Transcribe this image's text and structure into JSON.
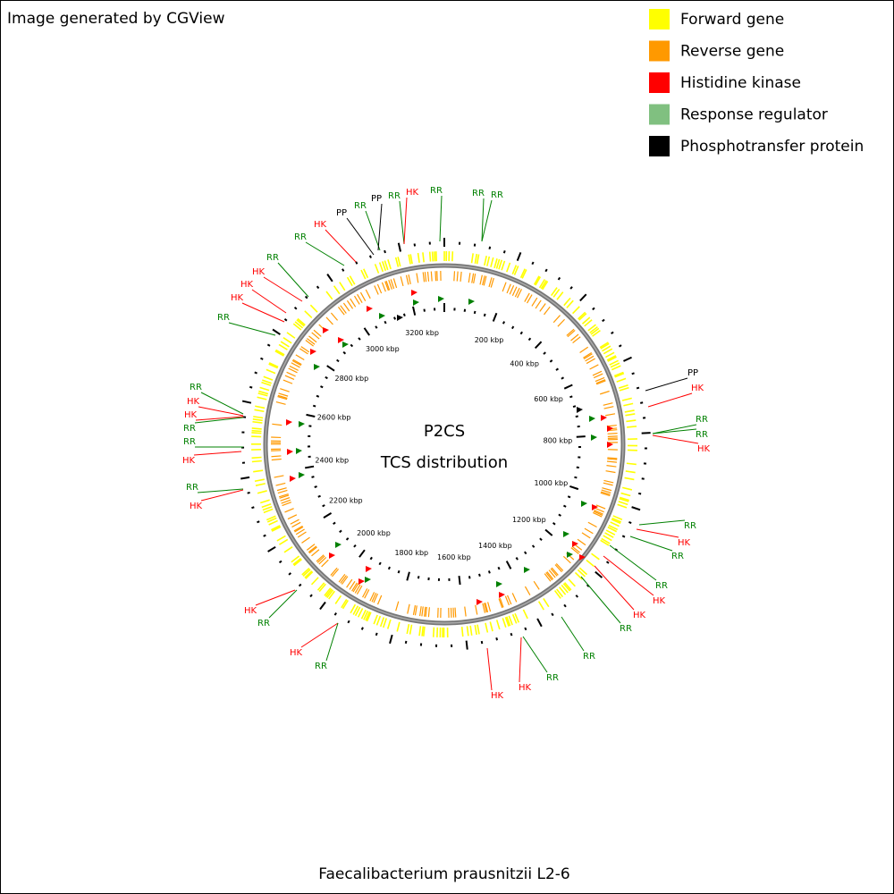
{
  "header": {
    "title": "Image generated by CGView"
  },
  "legend": [
    {
      "label": "Forward gene",
      "color": "#ffff00"
    },
    {
      "label": "Reverse gene",
      "color": "#ff9900"
    },
    {
      "label": "Histidine kinase",
      "color": "#ff0000"
    },
    {
      "label": "Response regulator",
      "color": "#80c080"
    },
    {
      "label": "Phosphotransfer protein",
      "color": "#000000"
    }
  ],
  "map": {
    "title": "P2CS",
    "subtitle": "TCS distribution",
    "scale_labels": [
      "200 kbp",
      "400 kbp",
      "600 kbp",
      "800 kbp",
      "1000 kbp",
      "1200 kbp",
      "1400 kbp",
      "1600 kbp",
      "1800 kbp",
      "2000 kbp",
      "2200 kbp",
      "2400 kbp",
      "2600 kbp",
      "2800 kbp",
      "3000 kbp",
      "3200 kbp"
    ],
    "feature_labels": [
      {
        "label": "RR",
        "color": "#008000"
      },
      {
        "label": "HK",
        "color": "#ff0000"
      },
      {
        "label": "PP",
        "color": "#000000"
      },
      {
        "label": "RR",
        "color": "#008000"
      },
      {
        "label": "PP",
        "color": "#000000"
      },
      {
        "label": "RR",
        "color": "#008000"
      },
      {
        "label": "HK",
        "color": "#ff0000"
      },
      {
        "label": "RR",
        "color": "#008000"
      },
      {
        "label": "RR",
        "color": "#008000"
      },
      {
        "label": "RR",
        "color": "#008000"
      },
      {
        "label": "RR",
        "color": "#008000"
      },
      {
        "label": "HK",
        "color": "#ff0000"
      },
      {
        "label": "HK",
        "color": "#ff0000"
      },
      {
        "label": "HK",
        "color": "#ff0000"
      },
      {
        "label": "RR",
        "color": "#008000"
      },
      {
        "label": "RR",
        "color": "#008000"
      },
      {
        "label": "HK",
        "color": "#ff0000"
      },
      {
        "label": "HK",
        "color": "#ff0000"
      },
      {
        "label": "RR",
        "color": "#008000"
      },
      {
        "label": "RR",
        "color": "#008000"
      },
      {
        "label": "HK",
        "color": "#ff0000"
      },
      {
        "label": "RR",
        "color": "#008000"
      },
      {
        "label": "HK",
        "color": "#ff0000"
      },
      {
        "label": "PP",
        "color": "#000000"
      },
      {
        "label": "HK",
        "color": "#ff0000"
      },
      {
        "label": "RR",
        "color": "#008000"
      },
      {
        "label": "RR",
        "color": "#008000"
      },
      {
        "label": "HK",
        "color": "#ff0000"
      },
      {
        "label": "RR",
        "color": "#008000"
      },
      {
        "label": "HK",
        "color": "#ff0000"
      },
      {
        "label": "RR",
        "color": "#008000"
      },
      {
        "label": "RR",
        "color": "#008000"
      },
      {
        "label": "HK",
        "color": "#ff0000"
      },
      {
        "label": "HK",
        "color": "#ff0000"
      },
      {
        "label": "RR",
        "color": "#008000"
      },
      {
        "label": "RR",
        "color": "#008000"
      },
      {
        "label": "HK",
        "color": "#ff0000"
      },
      {
        "label": "HK",
        "color": "#ff0000"
      },
      {
        "label": "RR",
        "color": "#008000"
      },
      {
        "label": "HK",
        "color": "#ff0000"
      },
      {
        "label": "RR",
        "color": "#008000"
      },
      {
        "label": "HK",
        "color": "#ff0000"
      },
      {
        "label": "RR",
        "color": "#008000"
      }
    ]
  },
  "footer": {
    "organism": "Faecalibacterium prausnitzii L2-6"
  }
}
